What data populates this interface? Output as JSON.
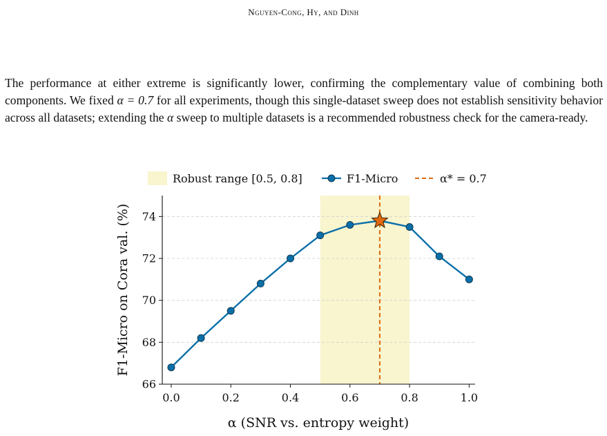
{
  "header": {
    "running_head": "Nguyen-Cong, Hy, and Dinh"
  },
  "paragraph": {
    "s1": "The performance at either extreme is significantly lower, confirming the complementary value of combining both components. We fixed ",
    "m1": "α = 0.7",
    "s2": " for all experiments, though this single-dataset sweep does not establish sensitivity behavior across all datasets; extending the ",
    "m2": "α",
    "s3": " sweep to multiple datasets is a recommended robustness check for the camera-ready."
  },
  "chart_data": {
    "type": "line",
    "x": [
      0.0,
      0.1,
      0.2,
      0.3,
      0.4,
      0.5,
      0.6,
      0.7,
      0.8,
      0.9,
      1.0
    ],
    "series": [
      {
        "name": "F1-Micro",
        "values": [
          66.8,
          68.2,
          69.5,
          70.8,
          72.0,
          73.1,
          73.6,
          73.8,
          73.5,
          72.1,
          71.0
        ],
        "color": "#0a6fa8"
      }
    ],
    "xlabel": "α (SNR vs. entropy weight)",
    "ylabel": "F1-Micro on Cora val. (%)",
    "xlim": [
      -0.03,
      1.02
    ],
    "ylim": [
      66,
      75
    ],
    "xticks": [
      "0.0",
      "0.2",
      "0.4",
      "0.6",
      "0.8",
      "1.0"
    ],
    "yticks": [
      "66",
      "68",
      "70",
      "72",
      "74"
    ],
    "robust_range": {
      "from": 0.5,
      "to": 0.8,
      "label": "Robust range [0.5, 0.8]",
      "color": "#f8f5cf"
    },
    "optimum": {
      "x": 0.7,
      "y": 73.8,
      "label": "α* = 0.7",
      "color": "#e06a10"
    },
    "grid": "horizontal dashed",
    "legend_position": "top"
  }
}
